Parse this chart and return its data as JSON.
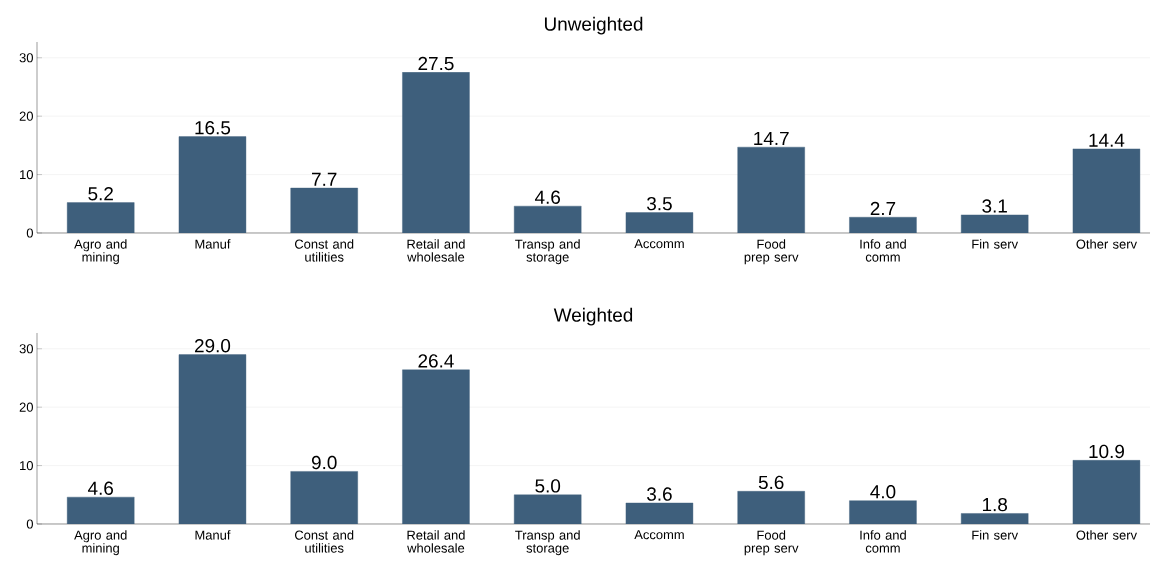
{
  "chart_data": [
    {
      "type": "bar",
      "title": "Unweighted",
      "categories": [
        "Agro and mining",
        "Manuf",
        "Const and utilities",
        "Retail and wholesale",
        "Transp and storage",
        "Accomm",
        "Food prep serv",
        "Info and comm",
        "Fin serv",
        "Other serv"
      ],
      "values": [
        5.2,
        16.5,
        7.7,
        27.5,
        4.6,
        3.5,
        14.7,
        2.7,
        3.1,
        14.4
      ],
      "value_labels": [
        "5.2",
        "16.5",
        "7.7",
        "27.5",
        "4.6",
        "3.5",
        "14.7",
        "2.7",
        "3.1",
        "14.4"
      ],
      "color": "#3e5f7c",
      "ylim": [
        0,
        32.7
      ],
      "yticks": [
        0,
        10,
        20,
        30
      ],
      "grid": "y"
    },
    {
      "type": "bar",
      "title": "Weighted",
      "categories": [
        "Agro and mining",
        "Manuf",
        "Const and utilities",
        "Retail and wholesale",
        "Transp and storage",
        "Accomm",
        "Food prep serv",
        "Info and comm",
        "Fin serv",
        "Other serv"
      ],
      "values": [
        4.6,
        29.0,
        9.0,
        26.4,
        5.0,
        3.6,
        5.6,
        4.0,
        1.8,
        10.9
      ],
      "value_labels": [
        "4.6",
        "29.0",
        "9.0",
        "26.4",
        "5.0",
        "3.6",
        "5.6",
        "4.0",
        "1.8",
        "10.9"
      ],
      "color": "#3e5f7c",
      "ylim": [
        0,
        32.7
      ],
      "yticks": [
        0,
        10,
        20,
        30
      ],
      "grid": "y"
    }
  ]
}
